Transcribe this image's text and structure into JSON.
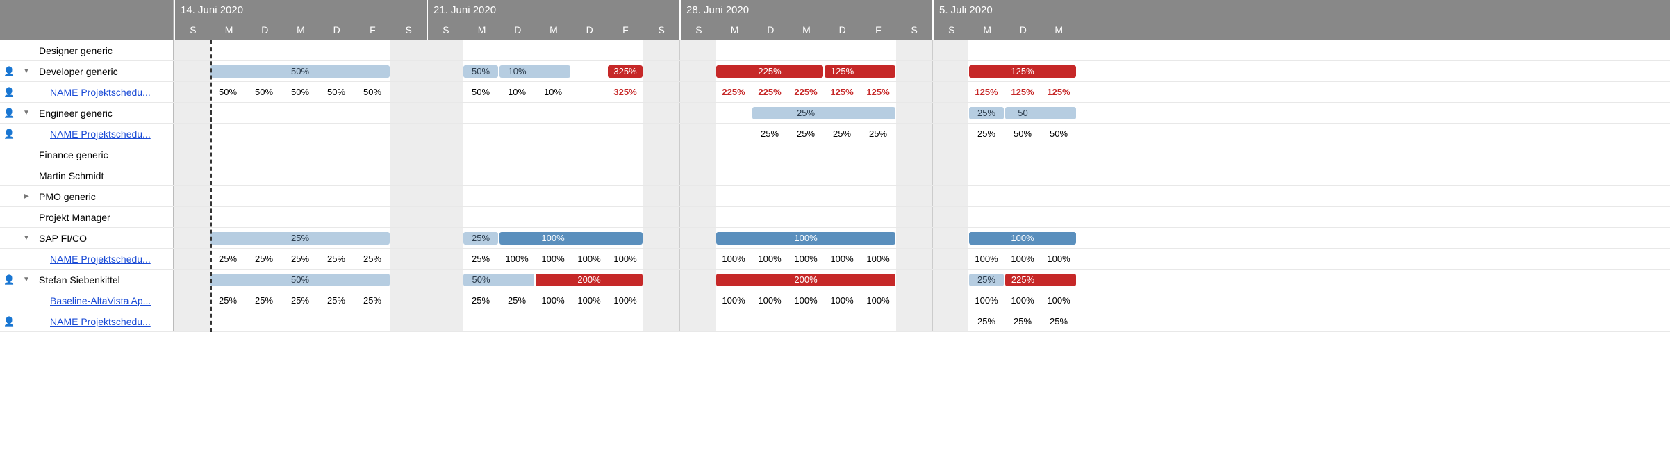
{
  "colors": {
    "lightBlue": "#b6cde1",
    "midBlue": "#5a8fbd",
    "red": "#c62828",
    "header": "#888888",
    "weekend": "#ededed",
    "textRed": "#c62828"
  },
  "dayWidth": 52,
  "weeks": [
    {
      "title": "14. Juni 2020",
      "days": [
        "S",
        "M",
        "D",
        "M",
        "D",
        "F",
        "S"
      ]
    },
    {
      "title": "21. Juni 2020",
      "days": [
        "S",
        "M",
        "D",
        "M",
        "D",
        "F",
        "S"
      ]
    },
    {
      "title": "28. Juni 2020",
      "days": [
        "S",
        "M",
        "D",
        "M",
        "D",
        "F",
        "S"
      ]
    },
    {
      "title": "5. Juli 2020",
      "days": [
        "S",
        "M",
        "D",
        "M"
      ]
    }
  ],
  "todayLineDayIndex": 1,
  "rows": [
    {
      "icon": false,
      "toggle": "",
      "name": "Designer generic",
      "link": false,
      "indent": 1,
      "type": "bar",
      "bars": []
    },
    {
      "icon": true,
      "toggle": "down",
      "name": "Developer generic",
      "link": false,
      "indent": 1,
      "type": "bar",
      "bars": [
        {
          "start": 1,
          "end": 5,
          "color": "lightBlue",
          "label": "50%"
        },
        {
          "start": 8,
          "end": 8,
          "color": "lightBlue",
          "label": "50%"
        },
        {
          "start": 9,
          "end": 10,
          "color": "lightBlue",
          "label": "10%"
        },
        {
          "start": 12,
          "end": 12,
          "color": "red",
          "label": "325%"
        },
        {
          "start": 15,
          "end": 17,
          "color": "red",
          "label": "225%"
        },
        {
          "start": 18,
          "end": 19,
          "color": "red",
          "label": "125%"
        },
        {
          "start": 22,
          "end": 24,
          "color": "red",
          "label": "125%"
        }
      ]
    },
    {
      "icon": true,
      "toggle": "",
      "name": "NAME Projektschedu...",
      "link": true,
      "indent": 2,
      "type": "values",
      "values": {
        "1": "50%",
        "2": "50%",
        "3": "50%",
        "4": "50%",
        "5": "50%",
        "8": "50%",
        "9": "10%",
        "10": "10%",
        "12": {
          "t": "325%",
          "red": true
        },
        "15": {
          "t": "225%",
          "red": true
        },
        "16": {
          "t": "225%",
          "red": true
        },
        "17": {
          "t": "225%",
          "red": true
        },
        "18": {
          "t": "125%",
          "red": true
        },
        "19": {
          "t": "125%",
          "red": true
        },
        "22": {
          "t": "125%",
          "red": true
        },
        "23": {
          "t": "125%",
          "red": true
        },
        "24": {
          "t": "125%",
          "red": true
        }
      }
    },
    {
      "icon": true,
      "toggle": "down",
      "name": "Engineer generic",
      "link": false,
      "indent": 1,
      "type": "bar",
      "bars": [
        {
          "start": 16,
          "end": 19,
          "color": "lightBlue",
          "label": "25%"
        },
        {
          "start": 22,
          "end": 22,
          "color": "lightBlue",
          "label": "25%"
        },
        {
          "start": 23,
          "end": 24,
          "color": "lightBlue",
          "label": "50"
        }
      ]
    },
    {
      "icon": true,
      "toggle": "",
      "name": "NAME Projektschedu...",
      "link": true,
      "indent": 2,
      "type": "values",
      "values": {
        "16": "25%",
        "17": "25%",
        "18": "25%",
        "19": "25%",
        "22": "25%",
        "23": "50%",
        "24": "50%"
      }
    },
    {
      "icon": false,
      "toggle": "",
      "name": "Finance generic",
      "link": false,
      "indent": 1,
      "type": "bar",
      "bars": []
    },
    {
      "icon": false,
      "toggle": "",
      "name": "Martin Schmidt",
      "link": false,
      "indent": 1,
      "type": "bar",
      "bars": []
    },
    {
      "icon": false,
      "toggle": "right",
      "name": "PMO generic",
      "link": false,
      "indent": 1,
      "type": "bar",
      "bars": []
    },
    {
      "icon": false,
      "toggle": "",
      "name": "Projekt Manager",
      "link": false,
      "indent": 1,
      "type": "bar",
      "bars": []
    },
    {
      "icon": false,
      "toggle": "down",
      "name": "SAP FI/CO",
      "link": false,
      "indent": 1,
      "type": "bar",
      "bars": [
        {
          "start": 1,
          "end": 5,
          "color": "lightBlue",
          "label": "25%"
        },
        {
          "start": 8,
          "end": 8,
          "color": "lightBlue",
          "label": "25%"
        },
        {
          "start": 9,
          "end": 12,
          "color": "midBlue",
          "label": "100%"
        },
        {
          "start": 15,
          "end": 19,
          "color": "midBlue",
          "label": "100%"
        },
        {
          "start": 22,
          "end": 24,
          "color": "midBlue",
          "label": "100%"
        }
      ]
    },
    {
      "icon": false,
      "toggle": "",
      "name": "NAME Projektschedu...",
      "link": true,
      "indent": 2,
      "type": "values",
      "values": {
        "1": "25%",
        "2": "25%",
        "3": "25%",
        "4": "25%",
        "5": "25%",
        "8": "25%",
        "9": "100%",
        "10": "100%",
        "11": "100%",
        "12": "100%",
        "15": "100%",
        "16": "100%",
        "17": "100%",
        "18": "100%",
        "19": "100%",
        "22": "100%",
        "23": "100%",
        "24": "100%"
      }
    },
    {
      "icon": true,
      "toggle": "down",
      "name": "Stefan Siebenkittel",
      "link": false,
      "indent": 1,
      "type": "bar",
      "bars": [
        {
          "start": 1,
          "end": 5,
          "color": "lightBlue",
          "label": "50%"
        },
        {
          "start": 8,
          "end": 9,
          "color": "lightBlue",
          "label": "50%"
        },
        {
          "start": 10,
          "end": 12,
          "color": "red",
          "label": "200%"
        },
        {
          "start": 15,
          "end": 19,
          "color": "red",
          "label": "200%"
        },
        {
          "start": 22,
          "end": 22,
          "color": "lightBlue",
          "label": "25%"
        },
        {
          "start": 23,
          "end": 24,
          "color": "red",
          "label": "225%"
        }
      ]
    },
    {
      "icon": false,
      "toggle": "",
      "name": "Baseline-AltaVista Ap...",
      "link": true,
      "indent": 2,
      "type": "values",
      "values": {
        "1": "25%",
        "2": "25%",
        "3": "25%",
        "4": "25%",
        "5": "25%",
        "8": "25%",
        "9": "25%",
        "10": "100%",
        "11": "100%",
        "12": "100%",
        "15": "100%",
        "16": "100%",
        "17": "100%",
        "18": "100%",
        "19": "100%",
        "22": "100%",
        "23": "100%",
        "24": "100%"
      }
    },
    {
      "icon": true,
      "toggle": "",
      "name": "NAME Projektschedu...",
      "link": true,
      "indent": 2,
      "type": "values",
      "values": {
        "22": "25%",
        "23": "25%",
        "24": "25%"
      }
    }
  ]
}
